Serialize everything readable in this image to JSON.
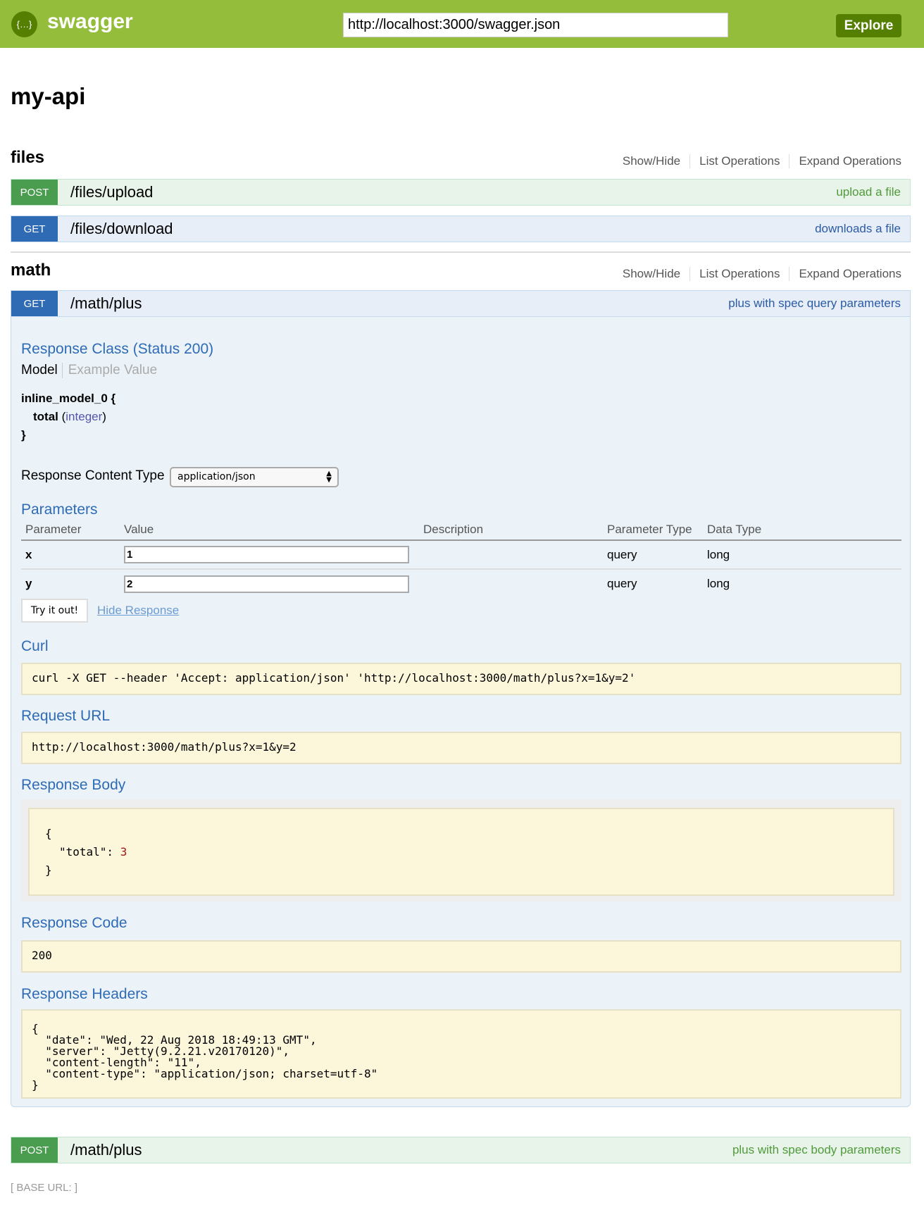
{
  "header": {
    "brand": "swagger",
    "logo_icon": "swagger-logo-icon",
    "url": "http://localhost:3000/swagger.json",
    "explore": "Explore"
  },
  "title": "my-api",
  "section_links": {
    "show_hide": "Show/Hide",
    "list": "List Operations",
    "expand": "Expand Operations"
  },
  "sections": [
    {
      "name": "files",
      "operations": [
        {
          "method": "POST",
          "path": "/files/upload",
          "summary": "upload a file"
        },
        {
          "method": "GET",
          "path": "/files/download",
          "summary": "downloads a file"
        }
      ]
    },
    {
      "name": "math",
      "operations": [
        {
          "method": "GET",
          "path": "/math/plus",
          "summary": "plus with spec query parameters"
        },
        {
          "method": "POST",
          "path": "/math/plus",
          "summary": "plus with spec body parameters"
        }
      ]
    }
  ],
  "detail": {
    "response_class": "Response Class (Status 200)",
    "tab_model": "Model",
    "tab_example": "Example Value",
    "model_name": "inline_model_0 {",
    "model_prop": "total",
    "model_type": "integer",
    "model_close": "}",
    "content_type_label": "Response Content Type",
    "content_type": "application/json",
    "parameters": "Parameters",
    "columns": [
      "Parameter",
      "Value",
      "Description",
      "Parameter Type",
      "Data Type"
    ],
    "rows": [
      {
        "name": "x",
        "value": "1",
        "description": "",
        "ptype": "query",
        "dtype": "long"
      },
      {
        "name": "y",
        "value": "2",
        "description": "",
        "ptype": "query",
        "dtype": "long"
      }
    ],
    "try": "Try it out!",
    "hide": "Hide Response",
    "curl_label": "Curl",
    "curl": "curl -X GET --header 'Accept: application/json' 'http://localhost:3000/math/plus?x=1&y=2'",
    "request_url_label": "Request URL",
    "request_url": "http://localhost:3000/math/plus?x=1&y=2",
    "body_label": "Response Body",
    "body_open": "{",
    "body_key": "\"total\": ",
    "body_value": "3",
    "body_close": "}",
    "code_label": "Response Code",
    "code": "200",
    "headers_label": "Response Headers",
    "headers": "{\n  \"date\": \"Wed, 22 Aug 2018 18:49:13 GMT\",\n  \"server\": \"Jetty(9.2.21.v20170120)\",\n  \"content-length\": \"11\",\n  \"content-type\": \"application/json; charset=utf-8\"\n}"
  },
  "base_url": "[ BASE URL: ]"
}
